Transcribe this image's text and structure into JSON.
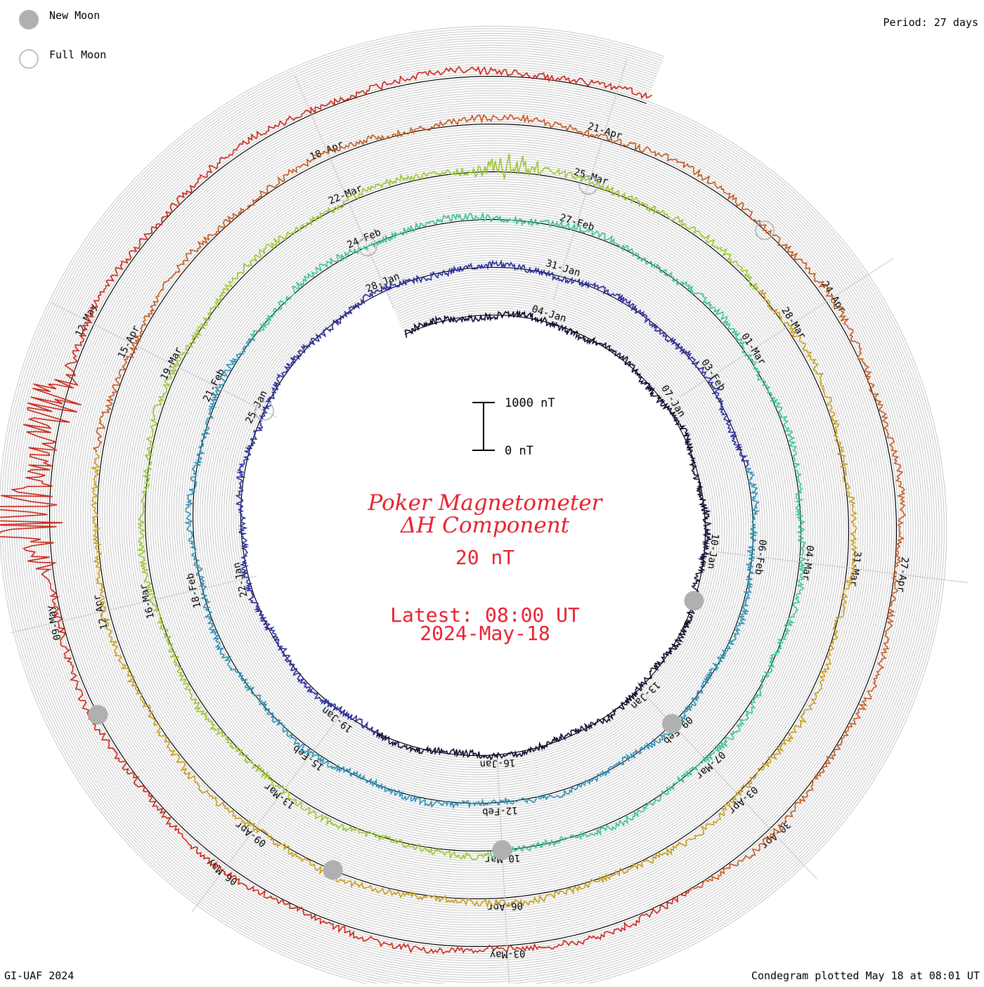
{
  "legend": {
    "new_moon_label": "New Moon",
    "full_moon_label": "Full Moon",
    "new_moon_color": "#b0b0b0",
    "full_moon_color": "#b0b0b0"
  },
  "period_label": "Period: 27 days",
  "footer_left": "GI-UAF 2024",
  "footer_right": "Condegram plotted May 18 at 08:01 UT",
  "title": {
    "line1": "Poker Magnetometer",
    "line2": "ΔH Component",
    "value": "20 nT",
    "latest_line1": "Latest: 08:00 UT",
    "latest_line2": "2024-May-18",
    "color": "#e8222f"
  },
  "chart_data": {
    "type": "line",
    "layout": "spiral condegram",
    "period_days": 27,
    "start_date": "2024-01-01",
    "end_time": "2024-05-18 08:00 UT",
    "scale_bar": {
      "top_label": "1000 nT",
      "bottom_label": "0 nT",
      "top_value": 1000,
      "bottom_value": 0,
      "unit": "nT"
    },
    "series_colors": [
      "#0c0a2e",
      "#2a2c9a",
      "#2b8fb4",
      "#39c48c",
      "#9ac62d",
      "#c79c18",
      "#c2581e",
      "#c8261a"
    ],
    "date_labels": [
      "04-Jan",
      "07-Jan",
      "10-Jan",
      "13-Jan",
      "16-Jan",
      "19-Jan",
      "22-Jan",
      "25-Jan",
      "28-Jan",
      "31-Jan",
      "03-Feb",
      "06-Feb",
      "09-Feb",
      "12-Feb",
      "15-Feb",
      "18-Feb",
      "21-Feb",
      "24-Feb",
      "27-Feb",
      "01-Mar",
      "04-Mar",
      "07-Mar",
      "10-Mar",
      "13-Mar",
      "16-Mar",
      "19-Mar",
      "22-Mar",
      "25-Mar",
      "28-Mar",
      "31-Mar",
      "03-Apr",
      "06-Apr",
      "09-Apr",
      "12-Apr",
      "15-Apr",
      "18-Apr",
      "21-Apr",
      "24-Apr",
      "27-Apr",
      "30-Apr",
      "03-May",
      "06-May",
      "09-May",
      "12-May"
    ],
    "new_moons": [
      "2024-01-11",
      "2024-02-09",
      "2024-03-10",
      "2024-04-08",
      "2024-05-08"
    ],
    "full_moons": [
      "2024-01-25",
      "2024-02-24",
      "2024-03-25",
      "2024-04-23"
    ],
    "events": [
      {
        "date": "2024-03-24",
        "peak_nT": 420
      },
      {
        "date": "2024-05-10",
        "peak_nT": 1600
      },
      {
        "date": "2024-05-11",
        "peak_nT": 1500
      }
    ]
  }
}
